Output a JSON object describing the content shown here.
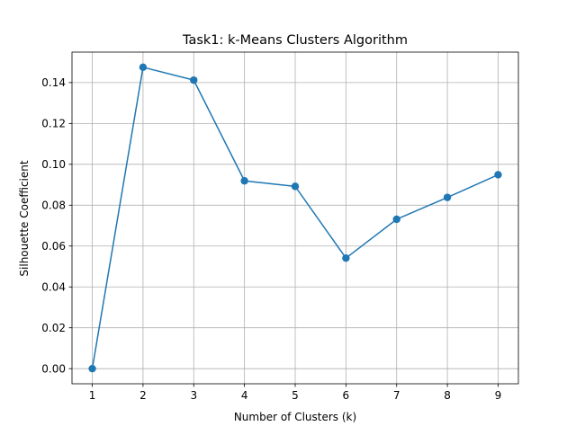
{
  "chart_data": {
    "type": "line",
    "title": "Task1: k-Means Clusters Algorithm",
    "xlabel": "Number of Clusters (k)",
    "ylabel": "Silhouette Coefficient",
    "x": [
      1,
      2,
      3,
      4,
      5,
      6,
      7,
      8,
      9
    ],
    "series": [
      {
        "values": [
          0.0,
          0.1475,
          0.1412,
          0.0919,
          0.0892,
          0.0541,
          0.0731,
          0.0838,
          0.0949
        ]
      }
    ],
    "xlim": [
      0.6,
      9.4
    ],
    "ylim": [
      -0.0074,
      0.1549
    ],
    "xticks": [
      "1",
      "2",
      "3",
      "4",
      "5",
      "6",
      "7",
      "8",
      "9"
    ],
    "yticks": [
      "0.00",
      "0.02",
      "0.04",
      "0.06",
      "0.08",
      "0.10",
      "0.12",
      "0.14"
    ],
    "grid": true,
    "marker": "circle",
    "line_color": "#1f77b4"
  }
}
